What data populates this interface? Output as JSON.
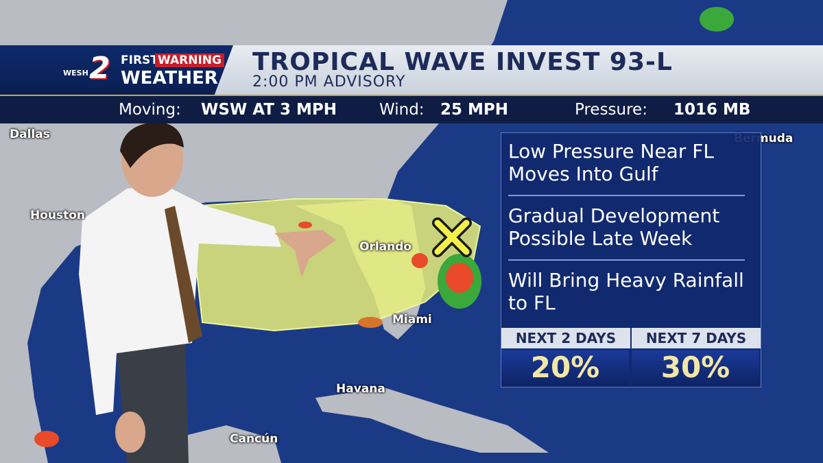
{
  "logo": {
    "station": "WESH",
    "channel": "2",
    "brand_top": [
      "FIRST",
      "WARNING"
    ],
    "brand_bottom": "WEATHER"
  },
  "header": {
    "title": "TROPICAL WAVE INVEST 93-L",
    "subtitle": "2:00 PM ADVISORY"
  },
  "info_bar": [
    {
      "label": "Moving:",
      "value": "WSW AT 3 MPH"
    },
    {
      "label": "Wind:",
      "value": "25 MPH"
    },
    {
      "label": "Pressure:",
      "value": "1016 MB"
    }
  ],
  "map": {
    "labels": [
      "Dallas",
      "Houston",
      "Orlando",
      "Miami",
      "Havana",
      "Cancún",
      "Bermuda"
    ]
  },
  "panel": {
    "points": [
      "Low Pressure Near FL Moves Into Gulf",
      "Gradual Development Possible Late Week",
      "Will Bring Heavy Rainfall to FL"
    ],
    "outlook": [
      {
        "period": "NEXT 2 DAYS",
        "chance": "20%"
      },
      {
        "period": "NEXT 7 DAYS",
        "chance": "30%"
      }
    ]
  }
}
